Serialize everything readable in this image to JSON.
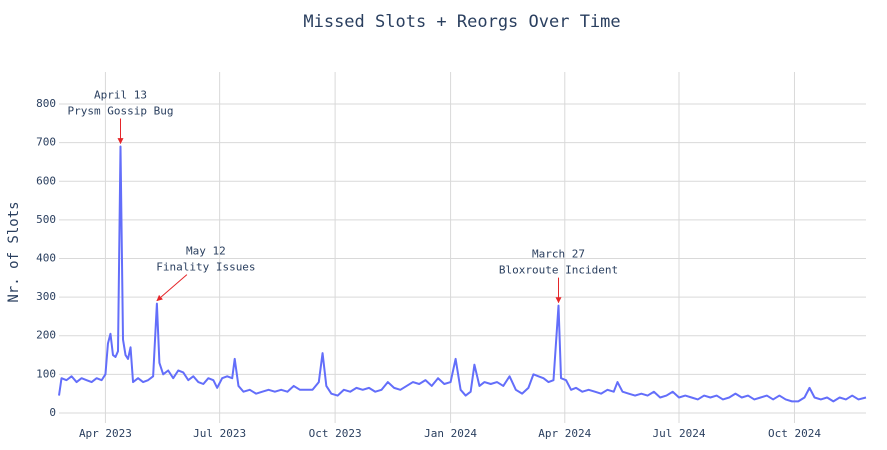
{
  "chart_data": {
    "type": "line",
    "title": "Missed Slots + Reorgs Over Time",
    "y_label": "Nr. of Slots",
    "color": "#636efa",
    "grid": true,
    "xlim": [
      "2023-02-23",
      "2024-11-27"
    ],
    "xticks": [
      {
        "value": "2023-04-01",
        "label": "Apr 2023"
      },
      {
        "value": "2023-07-01",
        "label": "Jul 2023"
      },
      {
        "value": "2023-10-01",
        "label": "Oct 2023"
      },
      {
        "value": "2024-01-01",
        "label": "Jan 2024"
      },
      {
        "value": "2024-04-01",
        "label": "Apr 2024"
      },
      {
        "value": "2024-07-01",
        "label": "Jul 2024"
      },
      {
        "value": "2024-10-01",
        "label": "Oct 2024"
      }
    ],
    "ylim": [
      -26,
      883
    ],
    "yticks": [
      0,
      100,
      200,
      300,
      400,
      500,
      600,
      700,
      800
    ],
    "x": [
      "2023-02-23",
      "2023-02-25",
      "2023-03-01",
      "2023-03-05",
      "2023-03-09",
      "2023-03-13",
      "2023-03-17",
      "2023-03-21",
      "2023-03-25",
      "2023-03-29",
      "2023-04-01",
      "2023-04-03",
      "2023-04-05",
      "2023-04-07",
      "2023-04-09",
      "2023-04-11",
      "2023-04-13",
      "2023-04-15",
      "2023-04-17",
      "2023-04-19",
      "2023-04-21",
      "2023-04-23",
      "2023-04-27",
      "2023-05-01",
      "2023-05-05",
      "2023-05-09",
      "2023-05-12",
      "2023-05-14",
      "2023-05-17",
      "2023-05-21",
      "2023-05-25",
      "2023-05-29",
      "2023-06-02",
      "2023-06-06",
      "2023-06-10",
      "2023-06-14",
      "2023-06-18",
      "2023-06-22",
      "2023-06-26",
      "2023-06-29",
      "2023-07-03",
      "2023-07-07",
      "2023-07-11",
      "2023-07-13",
      "2023-07-16",
      "2023-07-20",
      "2023-07-25",
      "2023-07-30",
      "2023-08-04",
      "2023-08-09",
      "2023-08-14",
      "2023-08-19",
      "2023-08-24",
      "2023-08-29",
      "2023-09-03",
      "2023-09-08",
      "2023-09-13",
      "2023-09-18",
      "2023-09-21",
      "2023-09-24",
      "2023-09-28",
      "2023-10-03",
      "2023-10-08",
      "2023-10-13",
      "2023-10-18",
      "2023-10-23",
      "2023-10-28",
      "2023-11-02",
      "2023-11-07",
      "2023-11-12",
      "2023-11-17",
      "2023-11-22",
      "2023-11-27",
      "2023-12-02",
      "2023-12-07",
      "2023-12-12",
      "2023-12-17",
      "2023-12-22",
      "2023-12-27",
      "2024-01-01",
      "2024-01-05",
      "2024-01-09",
      "2024-01-13",
      "2024-01-17",
      "2024-01-20",
      "2024-01-24",
      "2024-01-28",
      "2024-02-02",
      "2024-02-07",
      "2024-02-12",
      "2024-02-17",
      "2024-02-22",
      "2024-02-27",
      "2024-03-03",
      "2024-03-07",
      "2024-03-11",
      "2024-03-15",
      "2024-03-19",
      "2024-03-23",
      "2024-03-27",
      "2024-03-29",
      "2024-04-02",
      "2024-04-06",
      "2024-04-10",
      "2024-04-15",
      "2024-04-20",
      "2024-04-25",
      "2024-04-30",
      "2024-05-05",
      "2024-05-10",
      "2024-05-13",
      "2024-05-17",
      "2024-05-22",
      "2024-05-27",
      "2024-06-01",
      "2024-06-06",
      "2024-06-11",
      "2024-06-16",
      "2024-06-21",
      "2024-06-26",
      "2024-07-01",
      "2024-07-06",
      "2024-07-11",
      "2024-07-16",
      "2024-07-21",
      "2024-07-26",
      "2024-07-31",
      "2024-08-05",
      "2024-08-10",
      "2024-08-15",
      "2024-08-20",
      "2024-08-25",
      "2024-08-30",
      "2024-09-04",
      "2024-09-09",
      "2024-09-14",
      "2024-09-19",
      "2024-09-24",
      "2024-09-29",
      "2024-10-04",
      "2024-10-09",
      "2024-10-13",
      "2024-10-17",
      "2024-10-22",
      "2024-10-27",
      "2024-11-01",
      "2024-11-06",
      "2024-11-11",
      "2024-11-16",
      "2024-11-21",
      "2024-11-27"
    ],
    "values": [
      45,
      90,
      85,
      95,
      80,
      90,
      85,
      80,
      90,
      85,
      100,
      180,
      205,
      150,
      145,
      160,
      690,
      190,
      150,
      140,
      170,
      80,
      90,
      80,
      85,
      95,
      283,
      130,
      100,
      110,
      90,
      110,
      105,
      85,
      95,
      80,
      75,
      90,
      85,
      65,
      90,
      95,
      90,
      140,
      70,
      55,
      60,
      50,
      55,
      60,
      55,
      60,
      55,
      70,
      60,
      60,
      60,
      80,
      155,
      70,
      50,
      45,
      60,
      55,
      65,
      60,
      65,
      55,
      60,
      80,
      65,
      60,
      70,
      80,
      75,
      85,
      70,
      90,
      75,
      80,
      140,
      60,
      45,
      55,
      125,
      70,
      80,
      75,
      80,
      70,
      95,
      60,
      50,
      65,
      100,
      95,
      90,
      80,
      85,
      278,
      90,
      85,
      60,
      65,
      55,
      60,
      55,
      50,
      60,
      55,
      80,
      55,
      50,
      45,
      50,
      45,
      55,
      40,
      45,
      55,
      40,
      45,
      40,
      35,
      45,
      40,
      45,
      35,
      40,
      50,
      40,
      45,
      35,
      40,
      45,
      35,
      45,
      35,
      30,
      30,
      40,
      65,
      40,
      35,
      40,
      30,
      40,
      35,
      45,
      35,
      40
    ],
    "annotations": [
      {
        "x": "2023-04-13",
        "y": 690,
        "text": [
          "April 13",
          "Prysm Gossip Bug"
        ]
      },
      {
        "x": "2023-05-12",
        "y": 283,
        "text": [
          "May 12",
          "Finality Issues"
        ]
      },
      {
        "x": "2024-03-27",
        "y": 278,
        "text": [
          "March 27",
          "Bloxroute Incident"
        ]
      }
    ]
  }
}
